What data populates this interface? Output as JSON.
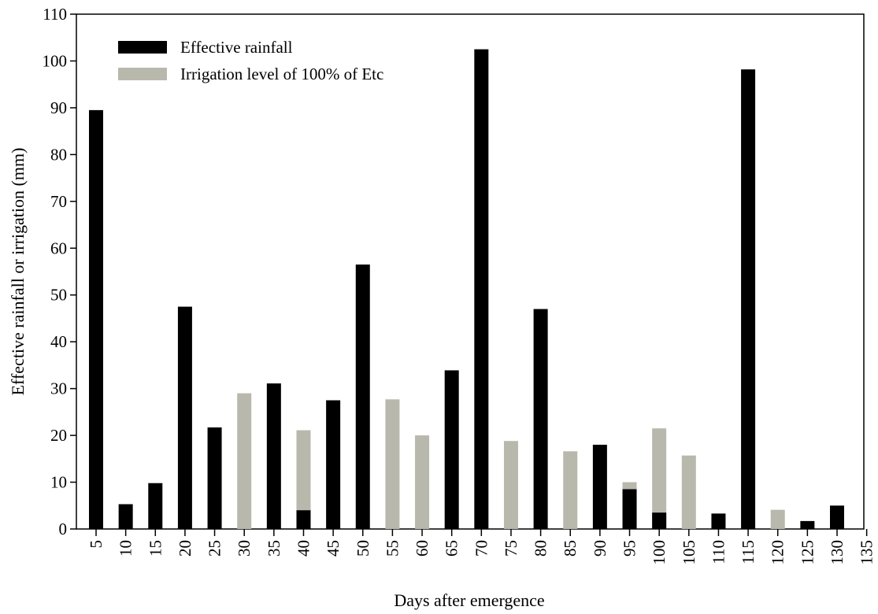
{
  "chart_data": {
    "type": "bar",
    "stacked": "overlap",
    "xlabel": "Days after emergence",
    "ylabel": "Effective rainfall or irrigation (mm)",
    "ylim": [
      0,
      110
    ],
    "yticks": [
      "0",
      "10",
      "20",
      "30",
      "40",
      "50",
      "60",
      "70",
      "80",
      "90",
      "100",
      "110"
    ],
    "categories": [
      "5",
      "10",
      "15",
      "20",
      "25",
      "30",
      "35",
      "40",
      "45",
      "50",
      "55",
      "60",
      "65",
      "70",
      "75",
      "80",
      "85",
      "90",
      "95",
      "100",
      "105",
      "110",
      "115",
      "120",
      "125",
      "130",
      "135"
    ],
    "legend_position": "top-left",
    "series": [
      {
        "name": "Effective rainfall",
        "color": "#000000",
        "values": [
          89.5,
          5.3,
          9.8,
          47.5,
          21.7,
          0,
          31.1,
          4.0,
          27.5,
          56.5,
          0,
          0,
          33.9,
          102.5,
          0,
          47.0,
          0,
          18.0,
          8.5,
          3.5,
          0,
          3.3,
          98.2,
          0,
          1.7,
          5.0,
          0
        ]
      },
      {
        "name": "Irrigation level of 100% of Etc",
        "color": "#b9b8ac",
        "values": [
          0,
          0,
          0,
          0,
          0,
          29.0,
          0,
          21.1,
          0,
          0,
          27.7,
          20.0,
          0,
          0,
          18.8,
          0,
          16.6,
          0,
          10.0,
          21.5,
          15.7,
          0,
          0,
          4.1,
          0,
          0,
          0
        ]
      }
    ]
  }
}
